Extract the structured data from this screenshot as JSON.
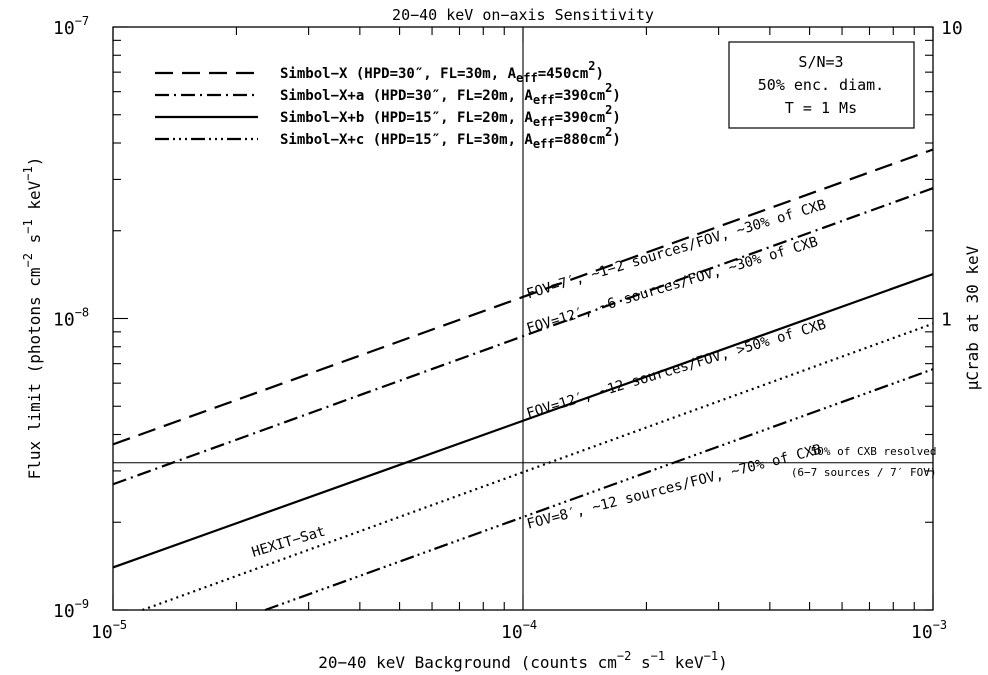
{
  "chart_data": {
    "type": "line",
    "title": "20−40 keV on−axis Sensitivity",
    "x_scale": "log",
    "y_scale": "log",
    "xlim": [
      1e-05,
      0.001
    ],
    "ylim": [
      1e-09,
      1e-07
    ],
    "x_ticks": [
      {
        "value": 1e-05,
        "base": "10",
        "exp": "−5"
      },
      {
        "value": 0.0001,
        "base": "10",
        "exp": "−4"
      },
      {
        "value": 0.001,
        "base": "10",
        "exp": "−3"
      }
    ],
    "y_ticks": [
      {
        "value": 1e-09,
        "base": "10",
        "exp": "−9"
      },
      {
        "value": 1e-08,
        "base": "10",
        "exp": "−8"
      },
      {
        "value": 1e-07,
        "base": "10",
        "exp": "−7"
      }
    ],
    "xlabel": {
      "prefix": "20−40 keV Background (counts cm",
      "exp1": "−2",
      "mid": " s",
      "exp2": "−1",
      "mid2": " keV",
      "exp3": "−1",
      "suffix": ")"
    },
    "ylabel": {
      "prefix": "Flux limit (photons cm",
      "exp1": "−2",
      "mid": " s",
      "exp2": "−1",
      "mid2": " keV",
      "exp3": "−1",
      "suffix": ")"
    },
    "y2label": "μCrab at 30 keV",
    "y2_ticks": [
      {
        "label": "10",
        "flux": 1e-07
      },
      {
        "label": "1",
        "flux": 1e-08
      }
    ],
    "y2_minor_flux": [
      9e-08,
      8e-08,
      7e-08,
      6e-08,
      5e-08,
      4e-08,
      3e-08,
      2e-08,
      9e-09,
      8e-09,
      7e-09,
      6e-09,
      5e-09,
      4e-09,
      3e-09,
      2e-09,
      1e-09
    ],
    "series": [
      {
        "name": "Simbol−X (HPD=30″, FL=30m, A",
        "sub": "eff",
        "mid": "=450cm",
        "sup": "2",
        "end": ")",
        "dash": "18,9",
        "x": [
          1e-05,
          0.001
        ],
        "y": [
          3.7e-09,
          3.8e-08
        ]
      },
      {
        "name": "Simbol−X+a (HPD=30″, FL=20m, A",
        "sub": "eff",
        "mid": "=390cm",
        "sup": "2",
        "end": ")",
        "dash": "14,5,2,5",
        "x": [
          1e-05,
          0.001
        ],
        "y": [
          2.7e-09,
          2.8e-08
        ]
      },
      {
        "name": "Simbol−X+b (HPD=15″, FL=20m, A",
        "sub": "eff",
        "mid": "=390cm",
        "sup": "2",
        "end": ")",
        "dash": "",
        "x": [
          1e-05,
          0.001
        ],
        "y": [
          1.4e-09,
          1.42e-08
        ]
      },
      {
        "name": "Simbol−X+c (HPD=15″, FL=30m, A",
        "sub": "eff",
        "mid": "=880cm",
        "sup": "2",
        "end": ")",
        "dash": "14,4,2,4,2,4,2,4",
        "x": [
          2.35e-05,
          0.001
        ],
        "y": [
          1e-09,
          6.7e-09
        ]
      },
      {
        "name": "HEXIT−Sat",
        "legend": false,
        "dash": "2,4",
        "x": [
          1.18e-05,
          0.001
        ],
        "y": [
          1e-09,
          9.6e-09
        ]
      }
    ],
    "reference_lines": [
      {
        "orientation": "horizontal",
        "value": 3.2e-09
      },
      {
        "orientation": "vertical",
        "value": 0.0001
      }
    ],
    "note_box": [
      "S/N=3",
      "50% enc. diam.",
      "T = 1 Ms"
    ],
    "annotations": [
      {
        "text": "FOV=7′, ~1−2 sources/FOV, ~30% of CXB",
        "x": 0.000103,
        "y": 1.17e-08,
        "angle": -16.8,
        "cls": "t-ann"
      },
      {
        "text": "FOV=12′, ~6 sources/FOV, ~30% of CXB",
        "x": 0.000103,
        "y": 8.9e-09,
        "angle": -16.8,
        "cls": "t-ann"
      },
      {
        "text": "FOV=12′,  ~12 sources/FOV, >50% of CXB",
        "x": 0.000103,
        "y": 4.55e-09,
        "angle": -16.8,
        "cls": "t-ann"
      },
      {
        "text": "FOV=8′,  ~12 sources/FOV, ~70% of CXB",
        "x": 0.000103,
        "y": 1.9e-09,
        "angle": -14.4,
        "cls": "t-ann"
      },
      {
        "text": "HEXIT−Sat",
        "x": 2.2e-05,
        "y": 1.52e-09,
        "angle": -16.8,
        "cls": "t-ann"
      },
      {
        "text": "50% of CXB resolved",
        "x": 0.00102,
        "y": 3.4e-09,
        "angle": 0,
        "cls": "t-small",
        "anchor": "end"
      },
      {
        "text": "(6−7 sources / 7′ FOV)",
        "x": 0.00102,
        "y": 2.88e-09,
        "angle": 0,
        "cls": "t-small",
        "anchor": "end"
      }
    ]
  }
}
